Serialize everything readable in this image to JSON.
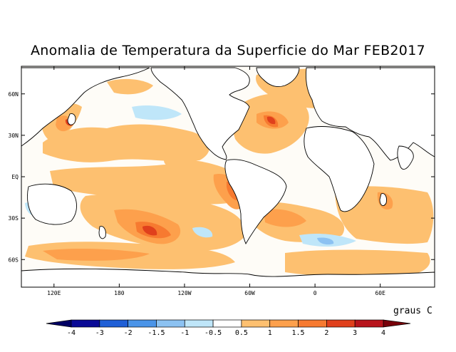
{
  "title": "Anomalia de Temperatura da Superficie do Mar FEB2017",
  "units_label": "graus C",
  "lat_labels": [
    {
      "label": "60N",
      "lat": 60
    },
    {
      "label": "30N",
      "lat": 30
    },
    {
      "label": "EQ",
      "lat": 0
    },
    {
      "label": "30S",
      "lat": -30
    },
    {
      "label": "60S",
      "lat": -60
    }
  ],
  "lon_labels": [
    {
      "label": "120E",
      "lon": 120
    },
    {
      "label": "180",
      "lon": 180
    },
    {
      "label": "120W",
      "lon": 240
    },
    {
      "label": "60W",
      "lon": 300
    },
    {
      "label": "0",
      "lon": 360
    },
    {
      "label": "60E",
      "lon": 420
    }
  ],
  "colorbar": {
    "edges": [
      "-4",
      "-3",
      "-2",
      "-1.5",
      "-1",
      "-0.5",
      "0.5",
      "1",
      "1.5",
      "2",
      "3",
      "4"
    ],
    "colors": [
      "#0a0a96",
      "#1f5fd6",
      "#4a94e8",
      "#8cc2f2",
      "#bfe6f9",
      "#ffffff",
      "#fdc070",
      "#fda04c",
      "#f77a30",
      "#e0401c",
      "#b8141c"
    ],
    "low_arrow_color": "#000064",
    "high_arrow_color": "#78000a"
  },
  "colors": {
    "land": "#ffffff",
    "coast": "#000000",
    "weak_warm": "#fdc070"
  }
}
